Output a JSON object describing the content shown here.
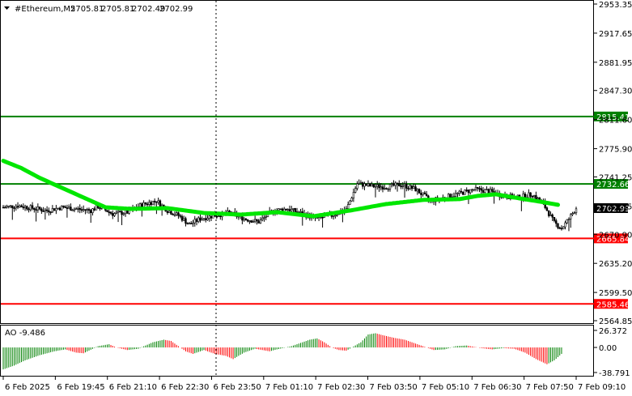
{
  "header": {
    "symbol": "#Ethereum,M5",
    "open": "2705.81",
    "high": "2705.81",
    "low": "2702.49",
    "close": "2702.99"
  },
  "colors": {
    "candle": "#000000",
    "ma": "#00e600",
    "support": "#ff0000",
    "resistance": "#008000",
    "ao_up": "#008000",
    "ao_down": "#ff0000",
    "current_price_box": "#000000",
    "grid": "#c8c8c8"
  },
  "chart_data": [
    {
      "type": "candlestick",
      "name": "price",
      "title": "#Ethereum,M5",
      "y_axis_ticks": [
        "2953.35",
        "2917.65",
        "2881.95",
        "2847.30",
        "2811.60",
        "2775.90",
        "2741.25",
        "2705.55",
        "2670.90",
        "2635.20",
        "2599.50",
        "2564.85"
      ],
      "ylim": [
        2564.85,
        2953.35
      ],
      "x_ticks": [
        "6 Feb 2025",
        "6 Feb 19:45",
        "6 Feb 21:10",
        "6 Feb 22:30",
        "6 Feb 23:50",
        "7 Feb 01:10",
        "7 Feb 02:30",
        "7 Feb 03:50",
        "7 Feb 05:10",
        "7 Feb 06:30",
        "7 Feb 07:50",
        "7 Feb 09:10"
      ],
      "current_price": {
        "value": 2702.99,
        "label": "2702.99"
      },
      "levels": [
        {
          "value": 2815.41,
          "label": "2815.41",
          "kind": "resistance"
        },
        {
          "value": 2732.66,
          "label": "2732.66",
          "kind": "resistance"
        },
        {
          "value": 2665.84,
          "label": "2665.84",
          "kind": "support"
        },
        {
          "value": 2585.46,
          "label": "2585.46",
          "kind": "support"
        }
      ],
      "close_keypoints": [
        [
          0,
          2704
        ],
        [
          8,
          2706
        ],
        [
          16,
          2703
        ],
        [
          24,
          2700
        ],
        [
          32,
          2704
        ],
        [
          40,
          2702
        ],
        [
          48,
          2700
        ],
        [
          52,
          2705
        ],
        [
          60,
          2696
        ],
        [
          68,
          2698
        ],
        [
          76,
          2707
        ],
        [
          84,
          2712
        ],
        [
          90,
          2700
        ],
        [
          96,
          2694
        ],
        [
          102,
          2683
        ],
        [
          108,
          2690
        ],
        [
          116,
          2694
        ],
        [
          124,
          2697
        ],
        [
          132,
          2690
        ],
        [
          140,
          2686
        ],
        [
          148,
          2700
        ],
        [
          156,
          2702
        ],
        [
          164,
          2696
        ],
        [
          172,
          2690
        ],
        [
          180,
          2694
        ],
        [
          188,
          2701
        ],
        [
          194,
          2733
        ],
        [
          202,
          2730
        ],
        [
          210,
          2729
        ],
        [
          218,
          2732
        ],
        [
          226,
          2726
        ],
        [
          234,
          2712
        ],
        [
          242,
          2716
        ],
        [
          250,
          2721
        ],
        [
          258,
          2726
        ],
        [
          266,
          2724
        ],
        [
          274,
          2718
        ],
        [
          282,
          2716
        ],
        [
          290,
          2720
        ],
        [
          296,
          2708
        ],
        [
          302,
          2685
        ],
        [
          306,
          2678
        ],
        [
          310,
          2690
        ],
        [
          314,
          2703
        ]
      ],
      "ma_keypoints": [
        [
          0,
          2761
        ],
        [
          10,
          2752
        ],
        [
          20,
          2740
        ],
        [
          40,
          2720
        ],
        [
          56,
          2704
        ],
        [
          70,
          2702
        ],
        [
          90,
          2703
        ],
        [
          110,
          2697
        ],
        [
          130,
          2695
        ],
        [
          150,
          2698
        ],
        [
          170,
          2693
        ],
        [
          190,
          2700
        ],
        [
          210,
          2708
        ],
        [
          230,
          2713
        ],
        [
          250,
          2714
        ],
        [
          260,
          2718
        ],
        [
          270,
          2720
        ],
        [
          280,
          2716
        ],
        [
          294,
          2711
        ],
        [
          304,
          2707
        ]
      ]
    },
    {
      "type": "bar",
      "name": "AO",
      "title": "AO -9.486",
      "y_axis_ticks": [
        "26.372",
        "0.00",
        "-38.791"
      ],
      "ylim": [
        -38.791,
        26.372
      ],
      "current_value": -9.486,
      "ao_keypoints": [
        [
          0,
          -34
        ],
        [
          6,
          -28
        ],
        [
          12,
          -20
        ],
        [
          20,
          -12
        ],
        [
          28,
          -6
        ],
        [
          34,
          -3
        ],
        [
          40,
          -8
        ],
        [
          44,
          -9
        ],
        [
          52,
          2
        ],
        [
          58,
          5
        ],
        [
          62,
          0
        ],
        [
          68,
          -4
        ],
        [
          74,
          -2
        ],
        [
          82,
          8
        ],
        [
          88,
          12
        ],
        [
          92,
          10
        ],
        [
          96,
          2
        ],
        [
          100,
          -6
        ],
        [
          104,
          -10
        ],
        [
          110,
          -4
        ],
        [
          116,
          -10
        ],
        [
          122,
          -13
        ],
        [
          126,
          -18
        ],
        [
          132,
          -8
        ],
        [
          138,
          -2
        ],
        [
          146,
          -6
        ],
        [
          150,
          -3
        ],
        [
          158,
          2
        ],
        [
          164,
          8
        ],
        [
          168,
          12
        ],
        [
          172,
          14
        ],
        [
          176,
          8
        ],
        [
          180,
          0
        ],
        [
          184,
          -4
        ],
        [
          188,
          -5
        ],
        [
          196,
          8
        ],
        [
          200,
          20
        ],
        [
          204,
          22
        ],
        [
          208,
          19
        ],
        [
          214,
          15
        ],
        [
          220,
          12
        ],
        [
          226,
          6
        ],
        [
          232,
          0
        ],
        [
          236,
          -4
        ],
        [
          242,
          -3
        ],
        [
          248,
          2
        ],
        [
          254,
          3
        ],
        [
          262,
          -1
        ],
        [
          268,
          -3
        ],
        [
          274,
          -1
        ],
        [
          280,
          -2
        ],
        [
          286,
          -8
        ],
        [
          292,
          -18
        ],
        [
          298,
          -26
        ],
        [
          302,
          -20
        ],
        [
          306,
          -10
        ]
      ]
    }
  ]
}
